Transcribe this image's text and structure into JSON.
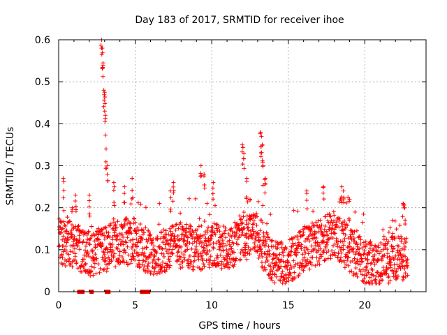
{
  "chart_data": {
    "type": "scatter",
    "title": "Day 183 of 2017, SRMTID for receiver ihoe",
    "xlabel": "GPS time / hours",
    "ylabel": "SRMTID / TECUs",
    "xlim": [
      0,
      24
    ],
    "ylim": [
      0,
      0.6
    ],
    "xticks": [
      "0",
      "5",
      "10",
      "15",
      "20"
    ],
    "xtick_values": [
      0,
      5,
      10,
      15,
      20
    ],
    "yticks": [
      "0",
      "0.1",
      "0.2",
      "0.3",
      "0.4",
      "0.5",
      "0.6"
    ],
    "ytick_values": [
      0,
      0.1,
      0.2,
      0.3,
      0.4,
      0.5,
      0.6
    ],
    "grid": true,
    "marker": "plus",
    "series": [
      {
        "name": "SRMTID",
        "color": "#ff0000",
        "generator": {
          "note": "values approximated from image; dense scatter reconstructed deterministically",
          "x_start": 0.0,
          "x_end": 22.8,
          "count": 1800,
          "baseline_segments": [
            [
              0.0,
              0.12
            ],
            [
              1.0,
              0.11
            ],
            [
              2.0,
              0.09
            ],
            [
              3.0,
              0.1
            ],
            [
              4.0,
              0.12
            ],
            [
              5.0,
              0.12
            ],
            [
              6.0,
              0.09
            ],
            [
              7.0,
              0.1
            ],
            [
              8.0,
              0.11
            ],
            [
              9.0,
              0.1
            ],
            [
              10.0,
              0.11
            ],
            [
              11.0,
              0.1
            ],
            [
              12.0,
              0.13
            ],
            [
              13.0,
              0.13
            ],
            [
              14.0,
              0.07
            ],
            [
              15.0,
              0.07
            ],
            [
              16.0,
              0.1
            ],
            [
              17.0,
              0.12
            ],
            [
              18.0,
              0.14
            ],
            [
              19.0,
              0.1
            ],
            [
              20.0,
              0.07
            ],
            [
              21.0,
              0.06
            ],
            [
              22.0,
              0.08
            ],
            [
              22.8,
              0.08
            ]
          ],
          "spikes": [
            [
              0.3,
              0.27
            ],
            [
              0.9,
              0.2
            ],
            [
              1.1,
              0.23
            ],
            [
              2.0,
              0.23
            ],
            [
              2.8,
              0.6
            ],
            [
              2.85,
              0.58
            ],
            [
              2.9,
              0.545
            ],
            [
              2.95,
              0.48
            ],
            [
              3.0,
              0.475
            ],
            [
              3.05,
              0.42
            ],
            [
              3.1,
              0.34
            ],
            [
              3.2,
              0.3
            ],
            [
              3.6,
              0.26
            ],
            [
              4.3,
              0.25
            ],
            [
              4.8,
              0.27
            ],
            [
              7.3,
              0.24
            ],
            [
              7.5,
              0.26
            ],
            [
              9.3,
              0.3
            ],
            [
              9.5,
              0.28
            ],
            [
              10.1,
              0.26
            ],
            [
              12.0,
              0.35
            ],
            [
              12.1,
              0.33
            ],
            [
              12.3,
              0.27
            ],
            [
              12.5,
              0.22
            ],
            [
              13.2,
              0.38
            ],
            [
              13.25,
              0.37
            ],
            [
              13.3,
              0.35
            ],
            [
              13.35,
              0.3
            ],
            [
              13.5,
              0.27
            ],
            [
              16.2,
              0.24
            ],
            [
              17.3,
              0.25
            ],
            [
              18.5,
              0.25
            ],
            [
              18.6,
              0.24
            ],
            [
              19.0,
              0.22
            ],
            [
              21.8,
              0.17
            ],
            [
              22.5,
              0.21
            ],
            [
              22.6,
              0.2
            ]
          ]
        }
      }
    ],
    "zero_markers": {
      "note": "squares at y=0 marking data gaps",
      "x": [
        1.35,
        1.45,
        1.55,
        2.15,
        3.15,
        3.25,
        5.45,
        5.55,
        5.65,
        5.75,
        5.85
      ]
    }
  }
}
